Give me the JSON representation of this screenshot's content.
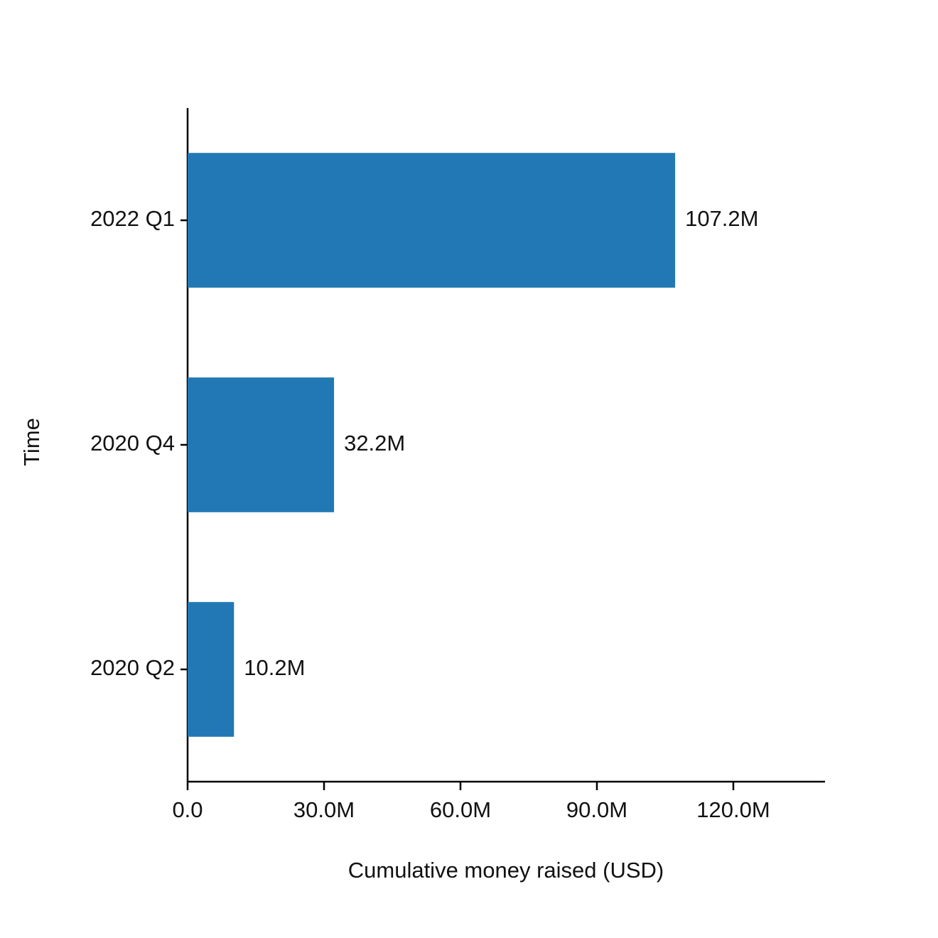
{
  "chart_data": {
    "type": "barh",
    "xlabel": "Cumulative money raised (USD)",
    "ylabel": "Time",
    "categories": [
      "2022 Q1",
      "2020 Q4",
      "2020 Q2"
    ],
    "values": [
      107200000,
      32200000,
      10200000
    ],
    "value_labels": [
      "107.2M",
      "32.2M",
      "10.2M"
    ],
    "color": "#2178b4",
    "xlim": [
      0,
      140000000
    ],
    "xticks": [
      {
        "value": 0,
        "label": "0.0"
      },
      {
        "value": 30000000,
        "label": "30.0M"
      },
      {
        "value": 60000000,
        "label": "60.0M"
      },
      {
        "value": 90000000,
        "label": "90.0M"
      },
      {
        "value": 120000000,
        "label": "120.0M"
      }
    ]
  }
}
